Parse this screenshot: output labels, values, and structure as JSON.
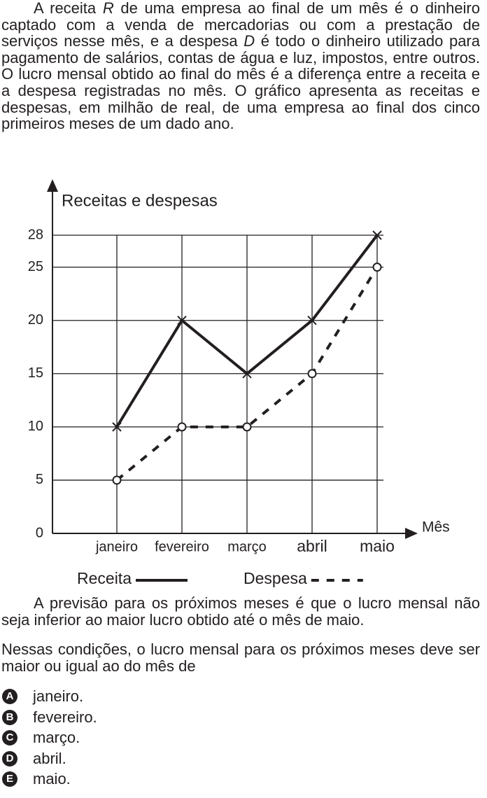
{
  "intro": [
    "A receita ",
    "R",
    " de uma empresa ao final de um mês é o dinheiro captado com a venda de mercadorias ou com a prestação de serviços nesse mês, e a despesa ",
    "D",
    " é todo o dinheiro utilizado para pagamento de salários, contas de água e luz, impostos, entre outros. O lucro mensal obtido ao final do mês é a diferença entre a receita e a despesa registradas no mês. O gráfico apresenta as receitas e despesas, em milhão de real, de uma empresa ao final dos cinco primeiros meses de um dado ano."
  ],
  "chart_data": {
    "type": "line",
    "y_label": "Receitas e despesas",
    "x_label": "Mês",
    "categories": [
      "janeiro",
      "fevereiro",
      "março",
      "abril",
      "maio"
    ],
    "series": [
      {
        "name": "Receita",
        "color": "#231f20",
        "marker": "x",
        "dashed": false,
        "values": [
          10,
          20,
          15,
          20,
          28
        ]
      },
      {
        "name": "Despesa",
        "color": "#231f20",
        "marker": "circle",
        "dashed": true,
        "values": [
          5,
          10,
          10,
          15,
          25
        ]
      }
    ],
    "ylim": [
      0,
      28
    ],
    "yticks": [
      0,
      5,
      10,
      15,
      20,
      25,
      28
    ],
    "grid": true
  },
  "forecast": "A previsão para os próximos meses é que o lucro mensal não seja inferior ao maior lucro obtido até o mês de maio.",
  "question": "Nessas condições, o lucro mensal para os próximos meses deve ser maior ou igual ao do mês de",
  "options": [
    {
      "letter": "A",
      "text": "janeiro."
    },
    {
      "letter": "B",
      "text": "fevereiro."
    },
    {
      "letter": "C",
      "text": "março."
    },
    {
      "letter": "D",
      "text": "abril."
    },
    {
      "letter": "E",
      "text": "maio."
    }
  ]
}
